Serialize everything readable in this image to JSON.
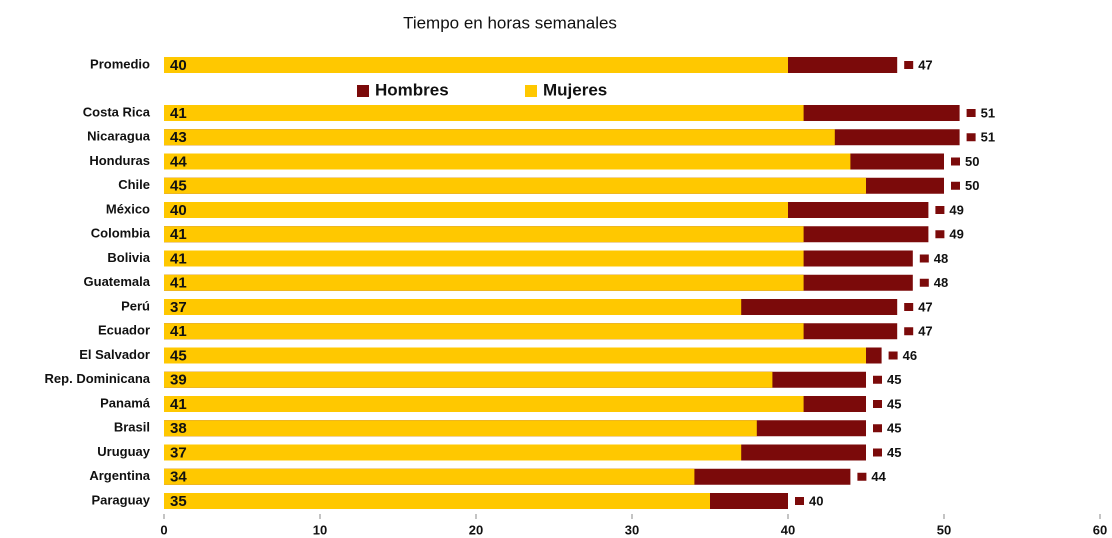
{
  "chart_data": {
    "type": "bar",
    "title": "Tiempo en horas semanales",
    "categories": [
      "Promedio",
      "Costa Rica",
      "Nicaragua",
      "Honduras",
      "Chile",
      "México",
      "Colombia",
      "Bolivia",
      "Guatemala",
      "Perú",
      "Ecuador",
      "El Salvador",
      "Rep. Dominicana",
      "Panamá",
      "Brasil",
      "Uruguay",
      "Argentina",
      "Paraguay"
    ],
    "series": [
      {
        "name": "Hombres",
        "color": "#7b0a0a",
        "values": [
          47,
          51,
          51,
          50,
          50,
          49,
          49,
          48,
          48,
          47,
          47,
          46,
          45,
          45,
          45,
          45,
          44,
          40
        ]
      },
      {
        "name": "Mujeres",
        "color": "#ffc800",
        "values": [
          40,
          41,
          43,
          44,
          45,
          40,
          41,
          41,
          41,
          37,
          41,
          45,
          39,
          41,
          38,
          37,
          34,
          35
        ]
      }
    ],
    "xlim": [
      0,
      60
    ],
    "xticks": [
      0,
      10,
      20,
      30,
      40,
      50,
      60
    ]
  }
}
